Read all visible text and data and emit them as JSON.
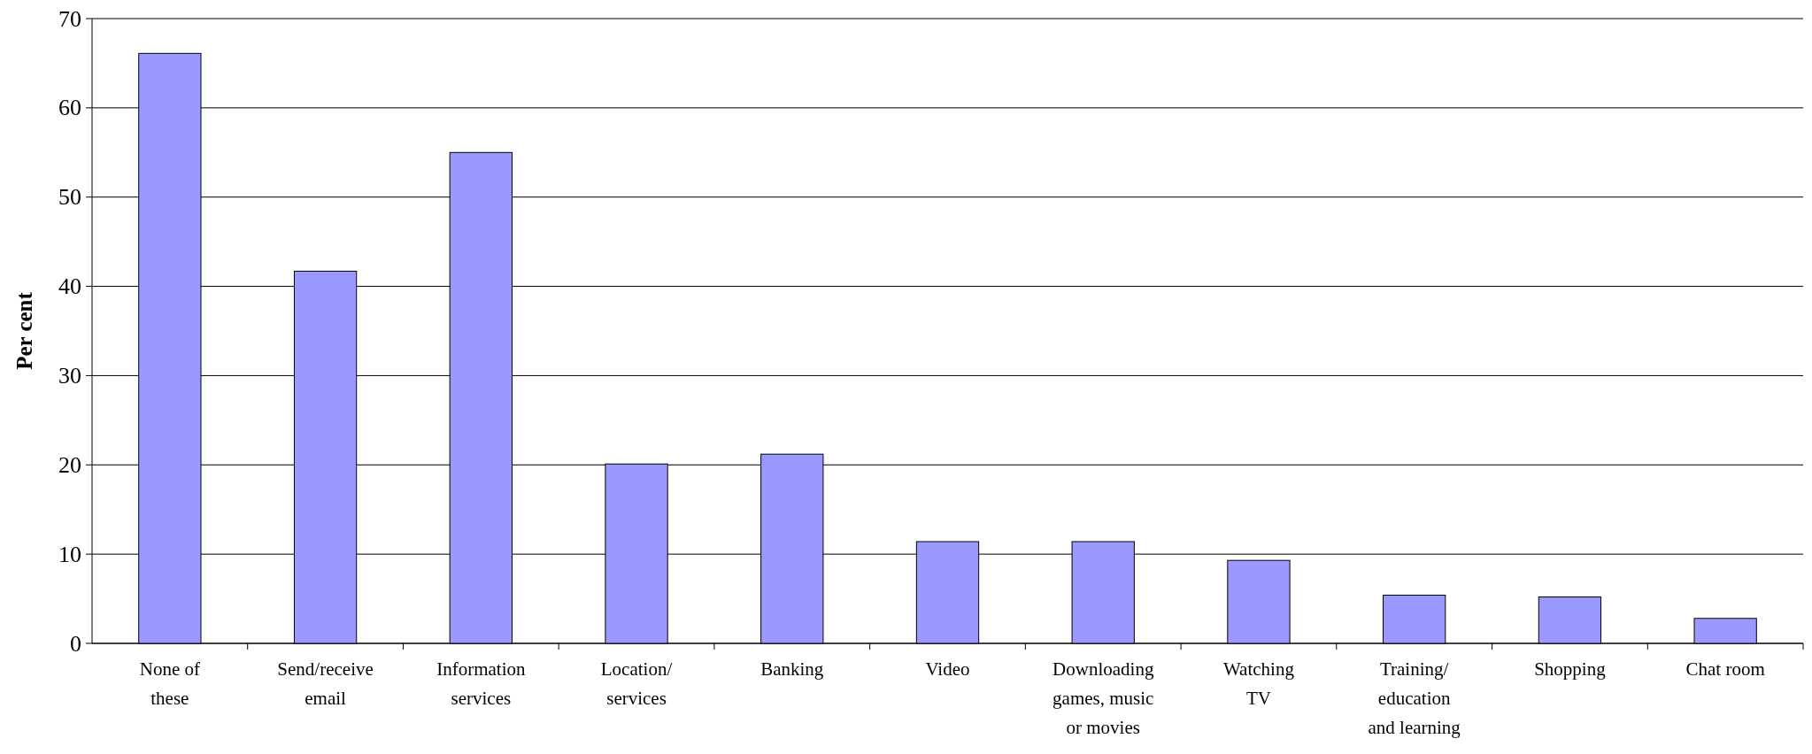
{
  "chart_data": {
    "type": "bar",
    "ylabel": "Per cent",
    "categories": [
      "None of\nthese",
      "Send/receive\nemail",
      "Information\nservices",
      "Location/\nservices",
      "Banking",
      "Video",
      "Downloading\ngames, music\nor movies",
      "Watching\nTV",
      "Training/\neducation\nand learning",
      "Shopping",
      "Chat room"
    ],
    "values": [
      66.1,
      41.7,
      55.0,
      20.1,
      21.2,
      11.4,
      11.4,
      9.3,
      5.4,
      5.2,
      2.8
    ],
    "color": "#9999ff",
    "ylim": [
      0,
      70
    ],
    "yticks": [
      0,
      10,
      20,
      30,
      40,
      50,
      60,
      70
    ],
    "grid": "y"
  }
}
